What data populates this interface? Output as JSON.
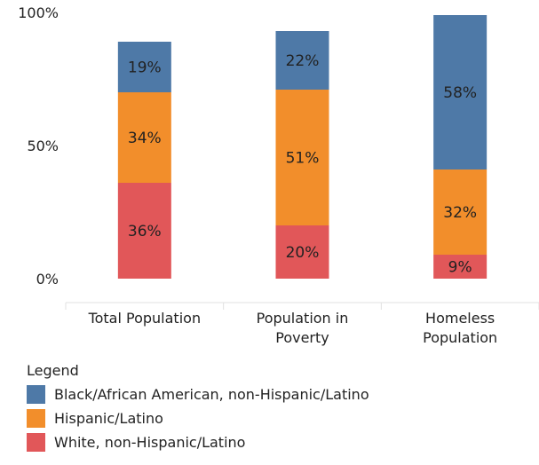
{
  "chart_data": {
    "type": "bar",
    "stacked": true,
    "categories": [
      {
        "lines": [
          "Total Population"
        ]
      },
      {
        "lines": [
          "Population in",
          "Poverty"
        ]
      },
      {
        "lines": [
          "Homeless",
          "Population"
        ]
      }
    ],
    "series": [
      {
        "name": "White, non-Hispanic/Latino",
        "color": "#e15759",
        "values": [
          36,
          20,
          9
        ],
        "labels": [
          "36%",
          "20%",
          "9%"
        ]
      },
      {
        "name": "Hispanic/Latino",
        "color": "#f28e2b",
        "values": [
          34,
          51,
          32
        ],
        "labels": [
          "34%",
          "51%",
          "32%"
        ]
      },
      {
        "name": "Black/African American, non-Hispanic/Latino",
        "color": "#4e79a7",
        "values": [
          19,
          22,
          58
        ],
        "labels": [
          "19%",
          "22%",
          "58%"
        ]
      }
    ],
    "yticks": [
      {
        "value": 0,
        "label": "0%"
      },
      {
        "value": 50,
        "label": "50%"
      },
      {
        "value": 100,
        "label": "100%"
      }
    ],
    "ylim": [
      0,
      100
    ],
    "grid": false,
    "legend_position": "bottom-left"
  },
  "legend": {
    "title": "Legend",
    "items": [
      {
        "label": "Black/African American, non-Hispanic/Latino",
        "color": "#4e79a7"
      },
      {
        "label": "Hispanic/Latino",
        "color": "#f28e2b"
      },
      {
        "label": "White, non-Hispanic/Latino",
        "color": "#e15759"
      }
    ]
  }
}
